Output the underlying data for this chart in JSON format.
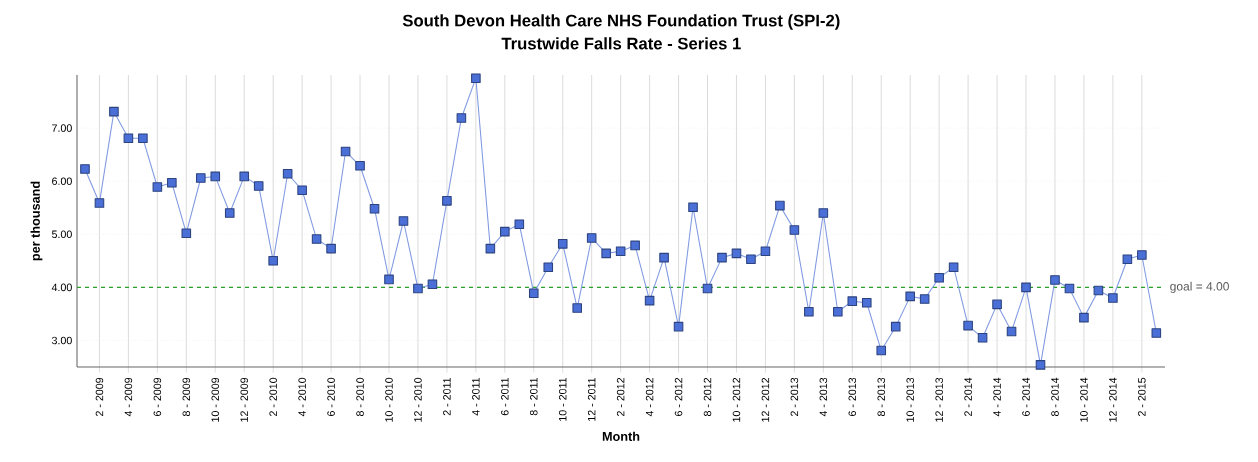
{
  "chart_data": {
    "type": "line",
    "title": "South Devon Health Care NHS Foundation Trust (SPI-2)",
    "subtitle": "Trustwide Falls Rate - Series 1",
    "xlabel": "Month",
    "ylabel": "per thousand",
    "categories": [
      null,
      "2 - 2009",
      null,
      "4 - 2009",
      null,
      "6 - 2009",
      null,
      "8 - 2009",
      null,
      "10 - 2009",
      null,
      "12 - 2009",
      null,
      "2 - 2010",
      null,
      "4 - 2010",
      null,
      "6 - 2010",
      null,
      "8 - 2010",
      null,
      "10 - 2010",
      null,
      "12 - 2010",
      null,
      "2 - 2011",
      null,
      "4 - 2011",
      null,
      "6 - 2011",
      null,
      "8 - 2011",
      null,
      "10 - 2011",
      null,
      "12 - 2011",
      null,
      "2 - 2012",
      null,
      "4 - 2012",
      null,
      "6 - 2012",
      null,
      "8 - 2012",
      null,
      "10 - 2012",
      null,
      "12 - 2012",
      null,
      "2 - 2013",
      null,
      "4 - 2013",
      null,
      "6 - 2013",
      null,
      "8 - 2013",
      null,
      "10 - 2013",
      null,
      "12 - 2013",
      null,
      "2 - 2014",
      null,
      "4 - 2014",
      null,
      "6 - 2014",
      null,
      "8 - 2014",
      null,
      "10 - 2014",
      null,
      "12 - 2014",
      null,
      "2 - 2015",
      null
    ],
    "values": [
      6.23,
      5.59,
      7.31,
      6.81,
      6.81,
      5.89,
      5.97,
      5.02,
      6.06,
      6.09,
      5.4,
      6.09,
      5.91,
      4.5,
      6.14,
      5.83,
      4.91,
      4.73,
      6.56,
      6.29,
      5.48,
      4.15,
      5.25,
      3.98,
      4.06,
      5.63,
      7.19,
      7.94,
      4.73,
      5.05,
      5.19,
      3.89,
      4.38,
      4.82,
      3.61,
      4.93,
      4.64,
      4.68,
      4.79,
      3.75,
      4.56,
      3.26,
      5.51,
      3.98,
      4.56,
      4.64,
      4.53,
      4.68,
      5.54,
      5.08,
      3.54,
      5.4,
      3.54,
      3.74,
      3.71,
      2.81,
      3.26,
      3.83,
      3.78,
      4.18,
      4.38,
      3.28,
      3.05,
      3.68,
      3.17,
      4.0,
      2.54,
      4.14,
      3.98,
      3.43,
      3.94,
      3.8,
      4.53,
      4.61,
      3.14
    ],
    "color": "#4a6fd6",
    "marker": "square",
    "line_style": "solid",
    "ylim": [
      2.5,
      8.0
    ],
    "yticks": [
      {
        "value": 3,
        "label": "3.00"
      },
      {
        "value": 4,
        "label": "4.00"
      },
      {
        "value": 5,
        "label": "5.00"
      },
      {
        "value": 6,
        "label": "6.00"
      },
      {
        "value": 7,
        "label": "7.00"
      }
    ],
    "ref_lines": [
      {
        "axis": "y",
        "value": 4,
        "label": "goal = 4.00",
        "color": "#2aa02a",
        "line_style": "dashed"
      }
    ],
    "grid": true
  }
}
